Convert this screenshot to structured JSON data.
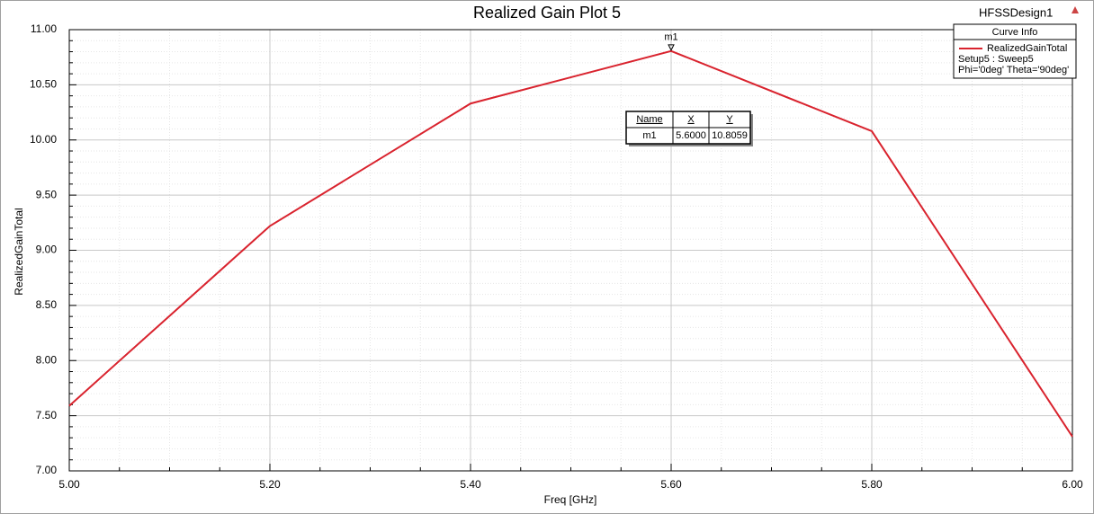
{
  "chart_data": {
    "type": "line",
    "title": "Realized Gain Plot 5",
    "design_name": "HFSSDesign1",
    "x_label": "Freq [GHz]",
    "y_label": "RealizedGainTotal",
    "x": [
      5.0,
      5.2,
      5.4,
      5.6,
      5.8,
      6.0
    ],
    "series": [
      {
        "name": "RealizedGainTotal",
        "color": "#d9232e",
        "values": [
          7.59,
          9.22,
          10.33,
          10.8059,
          10.08,
          7.31
        ]
      }
    ],
    "xlim": [
      5.0,
      6.0
    ],
    "ylim": [
      7.0,
      11.0
    ],
    "xticks": [
      {
        "value": 5.0,
        "label": "5.00"
      },
      {
        "value": 5.2,
        "label": "5.20"
      },
      {
        "value": 5.4,
        "label": "5.40"
      },
      {
        "value": 5.6,
        "label": "5.60"
      },
      {
        "value": 5.8,
        "label": "5.80"
      },
      {
        "value": 6.0,
        "label": "6.00"
      }
    ],
    "yticks": [
      {
        "value": 7.0,
        "label": "7.00"
      },
      {
        "value": 7.5,
        "label": "7.50"
      },
      {
        "value": 8.0,
        "label": "8.00"
      },
      {
        "value": 8.5,
        "label": "8.50"
      },
      {
        "value": 9.0,
        "label": "9.00"
      },
      {
        "value": 9.5,
        "label": "9.50"
      },
      {
        "value": 10.0,
        "label": "10.00"
      },
      {
        "value": 10.5,
        "label": "10.50"
      },
      {
        "value": 11.0,
        "label": "11.00"
      }
    ],
    "grid": true,
    "legend": {
      "title": "Curve Info",
      "lines": [
        "Setup5 : Sweep5",
        "Phi='0deg' Theta='90deg'"
      ],
      "position": "upper right"
    },
    "marker": {
      "name": "m1",
      "point": 3
    },
    "marker_table": {
      "headers": [
        "Name",
        "X",
        "Y"
      ],
      "row": [
        "m1",
        "5.6000",
        "10.8059"
      ]
    }
  }
}
